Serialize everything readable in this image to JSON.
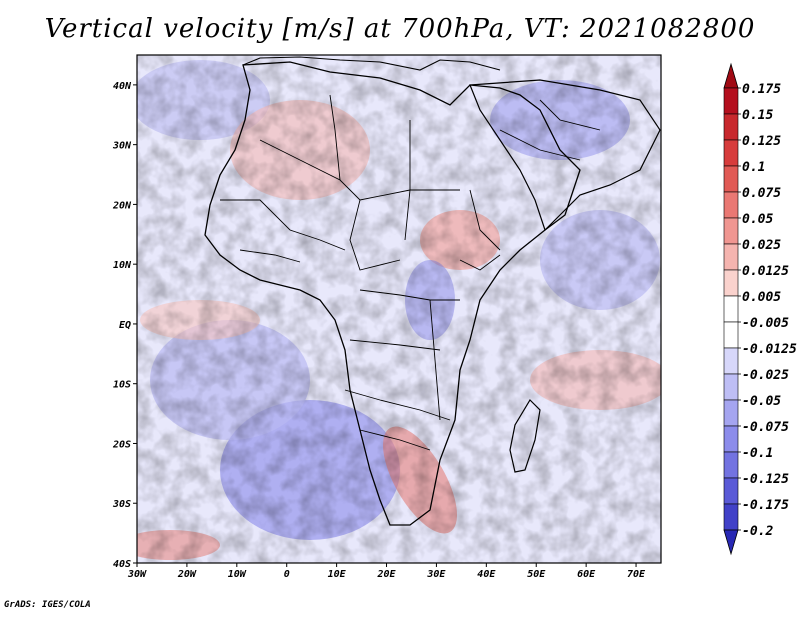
{
  "title": "Vertical velocity [m/s] at 700hPa, VT: 2021082800",
  "credit": "GrADS: IGES/COLA",
  "map": {
    "lon_range": [
      -30,
      75
    ],
    "lat_range": [
      -40,
      45
    ],
    "lon_ticks": [
      "30W",
      "20W",
      "10W",
      "0",
      "10E",
      "20E",
      "30E",
      "40E",
      "50E",
      "60E",
      "70E"
    ],
    "lat_ticks": [
      "40N",
      "30N",
      "20N",
      "10N",
      "EQ",
      "10S",
      "20S",
      "30S",
      "40S"
    ]
  },
  "colorbar": {
    "labels": [
      "0.175",
      "0.15",
      "0.125",
      "0.1",
      "0.075",
      "0.05",
      "0.025",
      "0.0125",
      "0.005",
      "-0.005",
      "-0.0125",
      "-0.025",
      "-0.05",
      "-0.075",
      "-0.1",
      "-0.125",
      "-0.175",
      "-0.2"
    ],
    "colors": [
      "#b40f1e",
      "#c8282d",
      "#d73c3c",
      "#e15a55",
      "#ea7873",
      "#f09691",
      "#f5b4af",
      "#fad2cd",
      "#ffffff",
      "#ffffff",
      "#d7d7fa",
      "#bebef5",
      "#a5a5f0",
      "#8c8ceb",
      "#7373e1",
      "#5a5ad7",
      "#4141c8",
      "#2828b4"
    ]
  }
}
